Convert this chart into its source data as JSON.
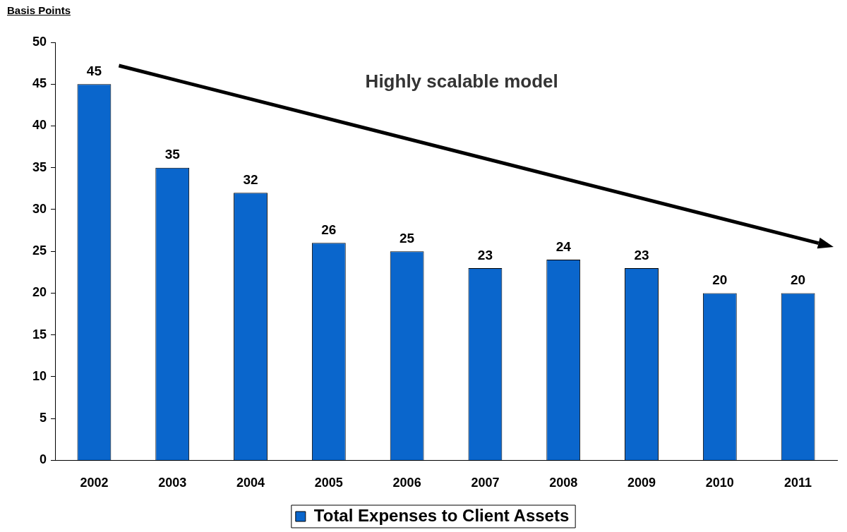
{
  "chart_data": {
    "type": "bar",
    "ylabel": "Basis Points",
    "categories": [
      "2002",
      "2003",
      "2004",
      "2005",
      "2006",
      "2007",
      "2008",
      "2009",
      "2010",
      "2011"
    ],
    "series": [
      {
        "name": "Total Expenses to Client Assets",
        "color": "#0a66cc",
        "values": [
          45,
          35,
          32,
          26,
          25,
          23,
          24,
          23,
          20,
          20
        ]
      }
    ],
    "ylim": [
      0,
      50
    ],
    "yticks": [
      0,
      5,
      10,
      15,
      20,
      25,
      30,
      35,
      40,
      45,
      50
    ],
    "data_labels": true,
    "grid": false,
    "legend": "bottom",
    "annotations": [
      "Highly scalable model"
    ]
  }
}
